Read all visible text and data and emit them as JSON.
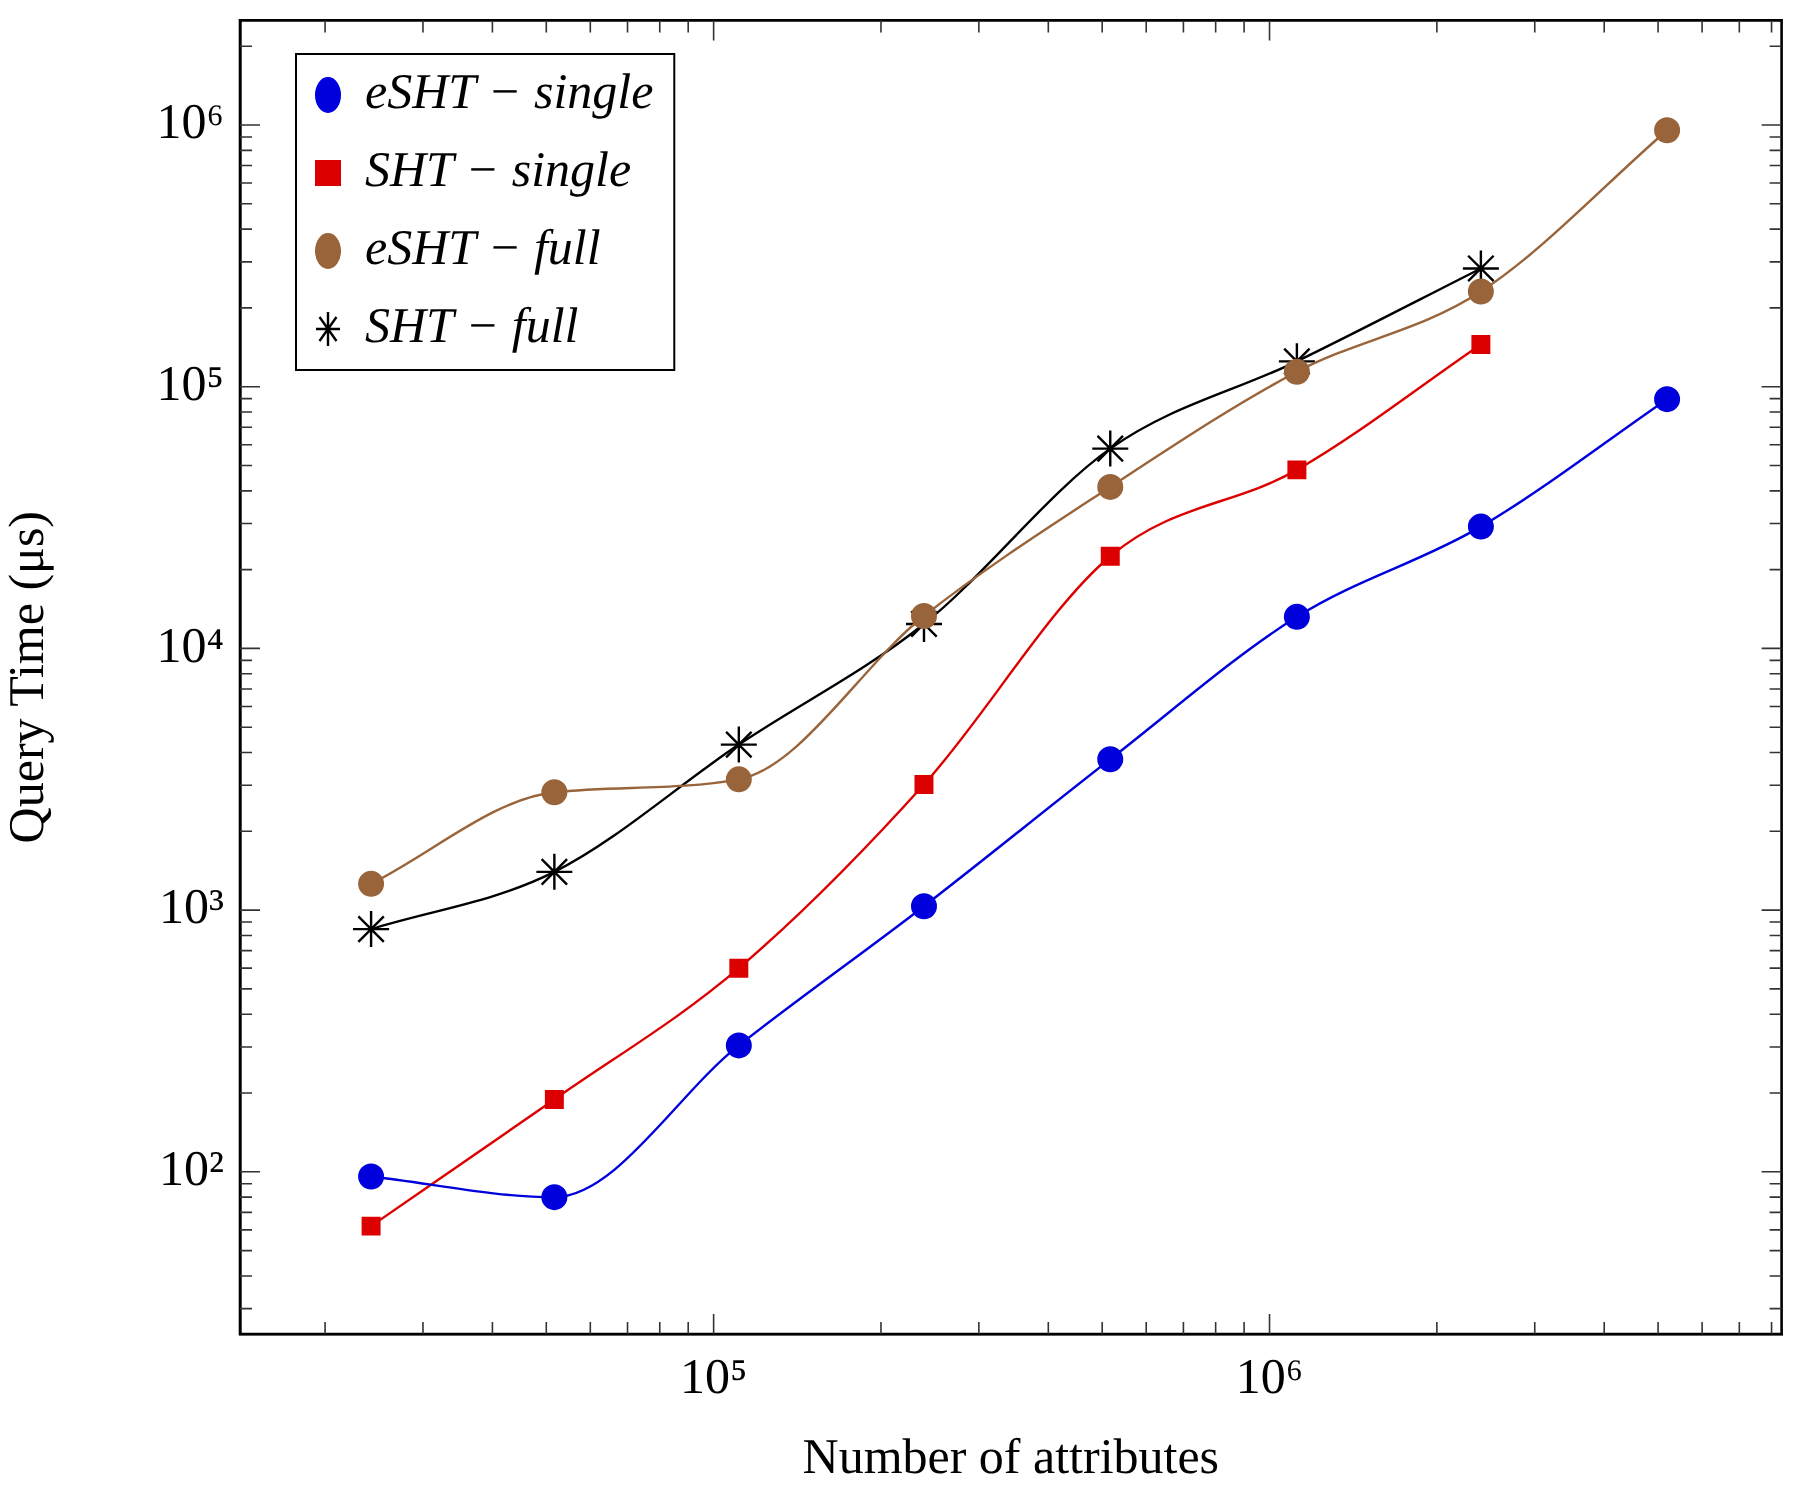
{
  "chart_data": {
    "type": "line",
    "xlabel": "Number of attributes",
    "ylabel": "Query Time (μs)",
    "log": "xy",
    "grid": false,
    "legend": "top left",
    "line_style": "solid",
    "x": [
      24200,
      51700,
      111000,
      239000,
      517000,
      1120000,
      2400000,
      5190000
    ],
    "xlim": [
      14060,
      8340000
    ],
    "xticks": [
      {
        "value": 20000,
        "label": null
      },
      {
        "value": 30000,
        "label": null
      },
      {
        "value": 40000,
        "label": null
      },
      {
        "value": 50000,
        "label": null
      },
      {
        "value": 60000,
        "label": null
      },
      {
        "value": 70000,
        "label": null
      },
      {
        "value": 80000,
        "label": null
      },
      {
        "value": 90000,
        "label": null
      },
      {
        "value": 100000,
        "label": "10⁵"
      },
      {
        "value": 200000,
        "label": null
      },
      {
        "value": 300000,
        "label": null
      },
      {
        "value": 400000,
        "label": null
      },
      {
        "value": 500000,
        "label": null
      },
      {
        "value": 600000,
        "label": null
      },
      {
        "value": 700000,
        "label": null
      },
      {
        "value": 800000,
        "label": null
      },
      {
        "value": 900000,
        "label": null
      },
      {
        "value": 1000000,
        "label": "10⁶"
      },
      {
        "value": 2000000,
        "label": null
      },
      {
        "value": 3000000,
        "label": null
      },
      {
        "value": 4000000,
        "label": null
      },
      {
        "value": 5000000,
        "label": null
      },
      {
        "value": 6000000,
        "label": null
      },
      {
        "value": 7000000,
        "label": null
      },
      {
        "value": 8000000,
        "label": null
      }
    ],
    "ylim": [
      24,
      2510000
    ],
    "yticks": [
      {
        "value": 30,
        "label": null
      },
      {
        "value": 40,
        "label": null
      },
      {
        "value": 50,
        "label": null
      },
      {
        "value": 60,
        "label": null
      },
      {
        "value": 70,
        "label": null
      },
      {
        "value": 80,
        "label": null
      },
      {
        "value": 90,
        "label": null
      },
      {
        "value": 100,
        "label": "10²"
      },
      {
        "value": 200,
        "label": null
      },
      {
        "value": 300,
        "label": null
      },
      {
        "value": 400,
        "label": null
      },
      {
        "value": 500,
        "label": null
      },
      {
        "value": 600,
        "label": null
      },
      {
        "value": 700,
        "label": null
      },
      {
        "value": 800,
        "label": null
      },
      {
        "value": 900,
        "label": null
      },
      {
        "value": 1000,
        "label": "10³"
      },
      {
        "value": 2000,
        "label": null
      },
      {
        "value": 3000,
        "label": null
      },
      {
        "value": 4000,
        "label": null
      },
      {
        "value": 5000,
        "label": null
      },
      {
        "value": 6000,
        "label": null
      },
      {
        "value": 7000,
        "label": null
      },
      {
        "value": 8000,
        "label": null
      },
      {
        "value": 9000,
        "label": null
      },
      {
        "value": 10000,
        "label": "10⁴"
      },
      {
        "value": 20000,
        "label": null
      },
      {
        "value": 30000,
        "label": null
      },
      {
        "value": 40000,
        "label": null
      },
      {
        "value": 50000,
        "label": null
      },
      {
        "value": 60000,
        "label": null
      },
      {
        "value": 70000,
        "label": null
      },
      {
        "value": 80000,
        "label": null
      },
      {
        "value": 90000,
        "label": null
      },
      {
        "value": 100000,
        "label": "10⁵"
      },
      {
        "value": 200000,
        "label": null
      },
      {
        "value": 300000,
        "label": null
      },
      {
        "value": 400000,
        "label": null
      },
      {
        "value": 500000,
        "label": null
      },
      {
        "value": 600000,
        "label": null
      },
      {
        "value": 700000,
        "label": null
      },
      {
        "value": 800000,
        "label": null
      },
      {
        "value": 900000,
        "label": null
      },
      {
        "value": 1000000,
        "label": "10⁶"
      },
      {
        "value": 2000000,
        "label": null
      }
    ],
    "series": [
      {
        "name": "eSHT − single",
        "color": "#0000dd",
        "marker": "circle",
        "values": [
          96,
          80,
          304,
          1035,
          3770,
          13200,
          29200,
          89600
        ]
      },
      {
        "name": "SHT − single",
        "color": "#dd0000",
        "marker": "square",
        "values": [
          62,
          189,
          600,
          3020,
          22500,
          48100,
          145000,
          null
        ]
      },
      {
        "name": "eSHT − full",
        "color": "#99643a",
        "marker": "circle",
        "values": [
          1260,
          2820,
          3160,
          13300,
          41400,
          114000,
          231000,
          955000
        ]
      },
      {
        "name": "SHT − full",
        "color": "#000000",
        "marker": "cross",
        "values": [
          846,
          1400,
          4290,
          12400,
          58000,
          125000,
          283000,
          null
        ]
      }
    ]
  }
}
